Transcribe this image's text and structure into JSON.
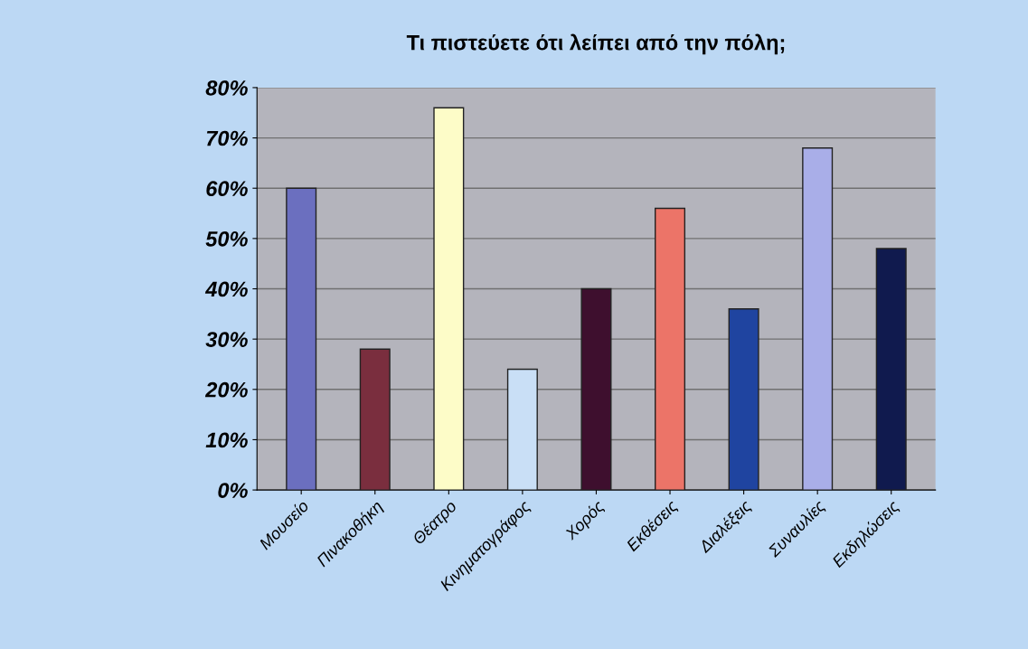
{
  "chart_data": {
    "type": "bar",
    "title": "Τι πιστεύετε ότι λείπει από την πόλη;",
    "categories": [
      "Μουσείο",
      "Πινακοθήκη",
      "Θέατρο",
      "Κινηματογράφος",
      "Χορός",
      "Εκθέσεις",
      "Διαλέξεις",
      "Συναυλίες",
      "Εκδηλώσεις"
    ],
    "values": [
      60,
      28,
      76,
      24,
      40,
      56,
      36,
      68,
      48
    ],
    "colors": [
      "#6b6fbf",
      "#7a2e3e",
      "#fdfcc8",
      "#c9dff6",
      "#3e0f2e",
      "#ec7468",
      "#1f44a0",
      "#a9aee8",
      "#101a4e"
    ],
    "ylim": [
      0,
      80
    ],
    "yticks": [
      {
        "value": 0,
        "label": "0%"
      },
      {
        "value": 10,
        "label": "10%"
      },
      {
        "value": 20,
        "label": "20%"
      },
      {
        "value": 30,
        "label": "30%"
      },
      {
        "value": 40,
        "label": "40%"
      },
      {
        "value": 50,
        "label": "50%"
      },
      {
        "value": 60,
        "label": "60%"
      },
      {
        "value": 70,
        "label": "70%"
      },
      {
        "value": 80,
        "label": "80%"
      }
    ],
    "grid": "y"
  }
}
